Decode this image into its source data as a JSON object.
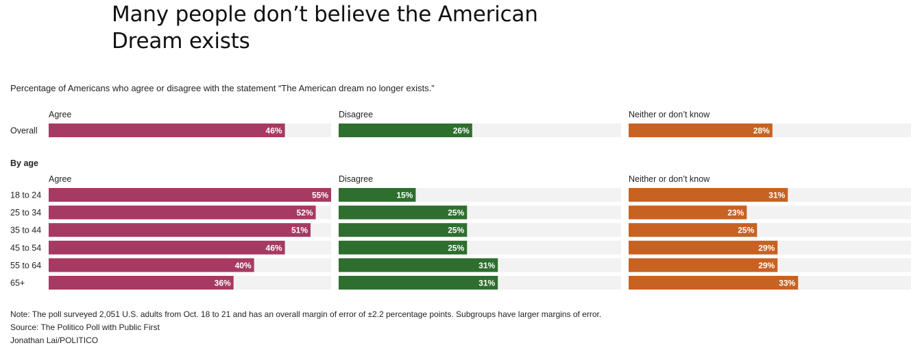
{
  "title": "Many people don’t believe the American Dream exists",
  "subtitle": "Percentage of Americans who agree or disagree with the statement “The American dream no longer exists.”",
  "notes": {
    "note": "Note: The poll surveyed 2,051 U.S. adults from Oct. 18 to 21 and has an overall margin of error of ±2.2 percentage points. Subgroups have larger margins of error.",
    "source": "Source: The Politico Poll with Public First",
    "credit": "Jonathan Lai/POLITICO"
  },
  "colors": {
    "agree": "#a63a62",
    "disagree": "#2e6e2e",
    "neither": "#c76222",
    "track": "#f2f2f2"
  },
  "chart_data": {
    "type": "bar",
    "orientation": "horizontal",
    "xlim": [
      0,
      55
    ],
    "series": [
      {
        "key": "agree",
        "name": "Agree"
      },
      {
        "key": "disagree",
        "name": "Disagree"
      },
      {
        "key": "neither",
        "name": "Neither or don’t know"
      }
    ],
    "groups": [
      {
        "label": "",
        "rows": [
          {
            "label": "Overall",
            "agree": 46,
            "disagree": 26,
            "neither": 28
          }
        ]
      },
      {
        "label": "By age",
        "rows": [
          {
            "label": "18 to 24",
            "agree": 55,
            "disagree": 15,
            "neither": 31
          },
          {
            "label": "25 to 34",
            "agree": 52,
            "disagree": 25,
            "neither": 23
          },
          {
            "label": "35 to 44",
            "agree": 51,
            "disagree": 25,
            "neither": 25
          },
          {
            "label": "45 to 54",
            "agree": 46,
            "disagree": 25,
            "neither": 29
          },
          {
            "label": "55 to 64",
            "agree": 40,
            "disagree": 31,
            "neither": 29
          },
          {
            "label": "65+",
            "agree": 36,
            "disagree": 31,
            "neither": 33
          }
        ]
      }
    ]
  }
}
